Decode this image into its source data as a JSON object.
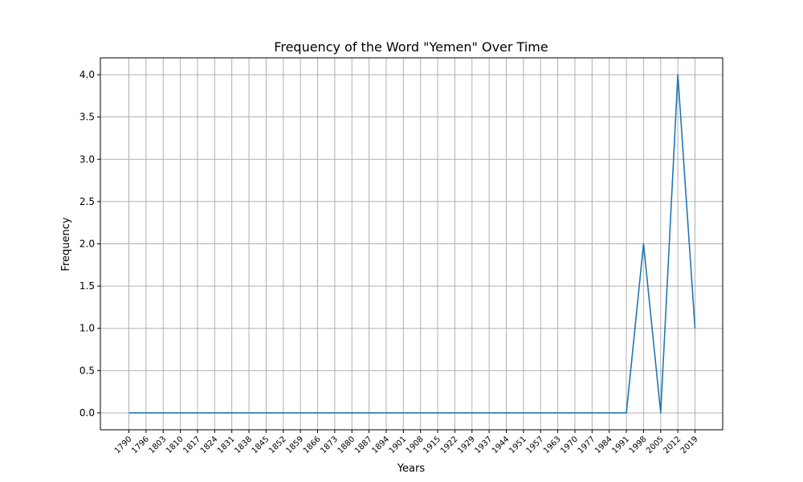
{
  "chart_data": {
    "type": "line",
    "title": "Frequency of the Word \"Yemen\" Over Time",
    "xlabel": "Years",
    "ylabel": "Frequency",
    "ylim": [
      -0.2,
      4.2
    ],
    "yticks": [
      "0.0",
      "0.5",
      "1.0",
      "1.5",
      "2.0",
      "2.5",
      "3.0",
      "3.5",
      "4.0"
    ],
    "grid": true,
    "line_color": "#1f77b4",
    "categories": [
      "1790",
      "1796",
      "1803",
      "1810",
      "1817",
      "1824",
      "1831",
      "1838",
      "1845",
      "1852",
      "1859",
      "1866",
      "1873",
      "1880",
      "1887",
      "1894",
      "1901",
      "1908",
      "1915",
      "1922",
      "1929",
      "1937",
      "1944",
      "1951",
      "1957",
      "1963",
      "1970",
      "1977",
      "1984",
      "1991",
      "1998",
      "2005",
      "2012",
      "2019"
    ],
    "series": [
      {
        "values": [
          0,
          0,
          0,
          0,
          0,
          0,
          0,
          0,
          0,
          0,
          0,
          0,
          0,
          0,
          0,
          0,
          0,
          0,
          0,
          0,
          0,
          0,
          0,
          0,
          0,
          0,
          0,
          0,
          0,
          0,
          2,
          0,
          4,
          1
        ]
      }
    ]
  }
}
